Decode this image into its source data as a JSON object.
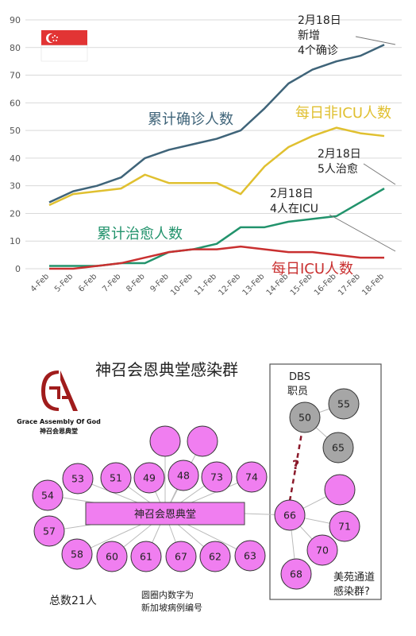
{
  "chart_data": {
    "type": "line",
    "categories": [
      "4-Feb",
      "5-Feb",
      "6-Feb",
      "7-Feb",
      "8-Feb",
      "9-Feb",
      "10-Feb",
      "11-Feb",
      "12-Feb",
      "13-Feb",
      "14-Feb",
      "15-Feb",
      "16-Feb",
      "17-Feb",
      "18-Feb"
    ],
    "ylim": [
      0,
      90
    ],
    "yticks": [
      0,
      10,
      20,
      30,
      40,
      50,
      60,
      70,
      80,
      90
    ],
    "grid": true,
    "series": [
      {
        "name": "累计确诊人数",
        "color": "#3f6479",
        "values": [
          24,
          28,
          30,
          33,
          40,
          43,
          45,
          47,
          50,
          58,
          67,
          72,
          75,
          77,
          81
        ]
      },
      {
        "name": "每日非ICU人数",
        "color": "#e0c030",
        "values": [
          23,
          27,
          28,
          29,
          34,
          31,
          31,
          31,
          27,
          37,
          44,
          48,
          51,
          49,
          48
        ]
      },
      {
        "name": "累计治愈人数",
        "color": "#22936c",
        "values": [
          1,
          1,
          1,
          2,
          2,
          6,
          7,
          9,
          15,
          15,
          17,
          18,
          19,
          24,
          29
        ]
      },
      {
        "name": "每日ICU人数",
        "color": "#c93030",
        "values": [
          0,
          0,
          1,
          2,
          4,
          6,
          7,
          7,
          8,
          7,
          6,
          6,
          5,
          4,
          4
        ]
      }
    ],
    "annotations": [
      {
        "id": "confirmed",
        "lines": [
          "2月18日",
          "新增",
          "4个确诊"
        ]
      },
      {
        "id": "recovered",
        "lines": [
          "2月18日",
          "5人治愈"
        ]
      },
      {
        "id": "icu",
        "lines": [
          "2月18日",
          "4人在ICU"
        ]
      }
    ]
  },
  "cluster": {
    "title": "神召会恩典堂感染群",
    "logo_text_en": "Grace Assembly Of God",
    "logo_text_cn": "神召会恩典堂",
    "hub_label": "神召会恩典堂",
    "dbs_label_1": "DBS",
    "dbs_label_2": "职员",
    "question_mark": "?",
    "meiyuan_label_1": "美苑通道",
    "meiyuan_label_2": "感染群?",
    "total_label": "总数21人",
    "note_1": "圆圈内数字为",
    "note_2": "新加坡病例编号",
    "cases": [
      "",
      "",
      "53",
      "51",
      "49",
      "48",
      "73",
      "74",
      "54",
      "57",
      "58",
      "60",
      "61",
      "67",
      "62",
      "63",
      "66",
      "",
      "71",
      "70",
      "68",
      "50",
      "55",
      "65"
    ],
    "colors": {
      "pink": "#f07ef0",
      "hub": "#f07ef0",
      "gray": "#a6a6a6",
      "link": "#8b1a2b",
      "edge": "#bbbbbb"
    }
  }
}
